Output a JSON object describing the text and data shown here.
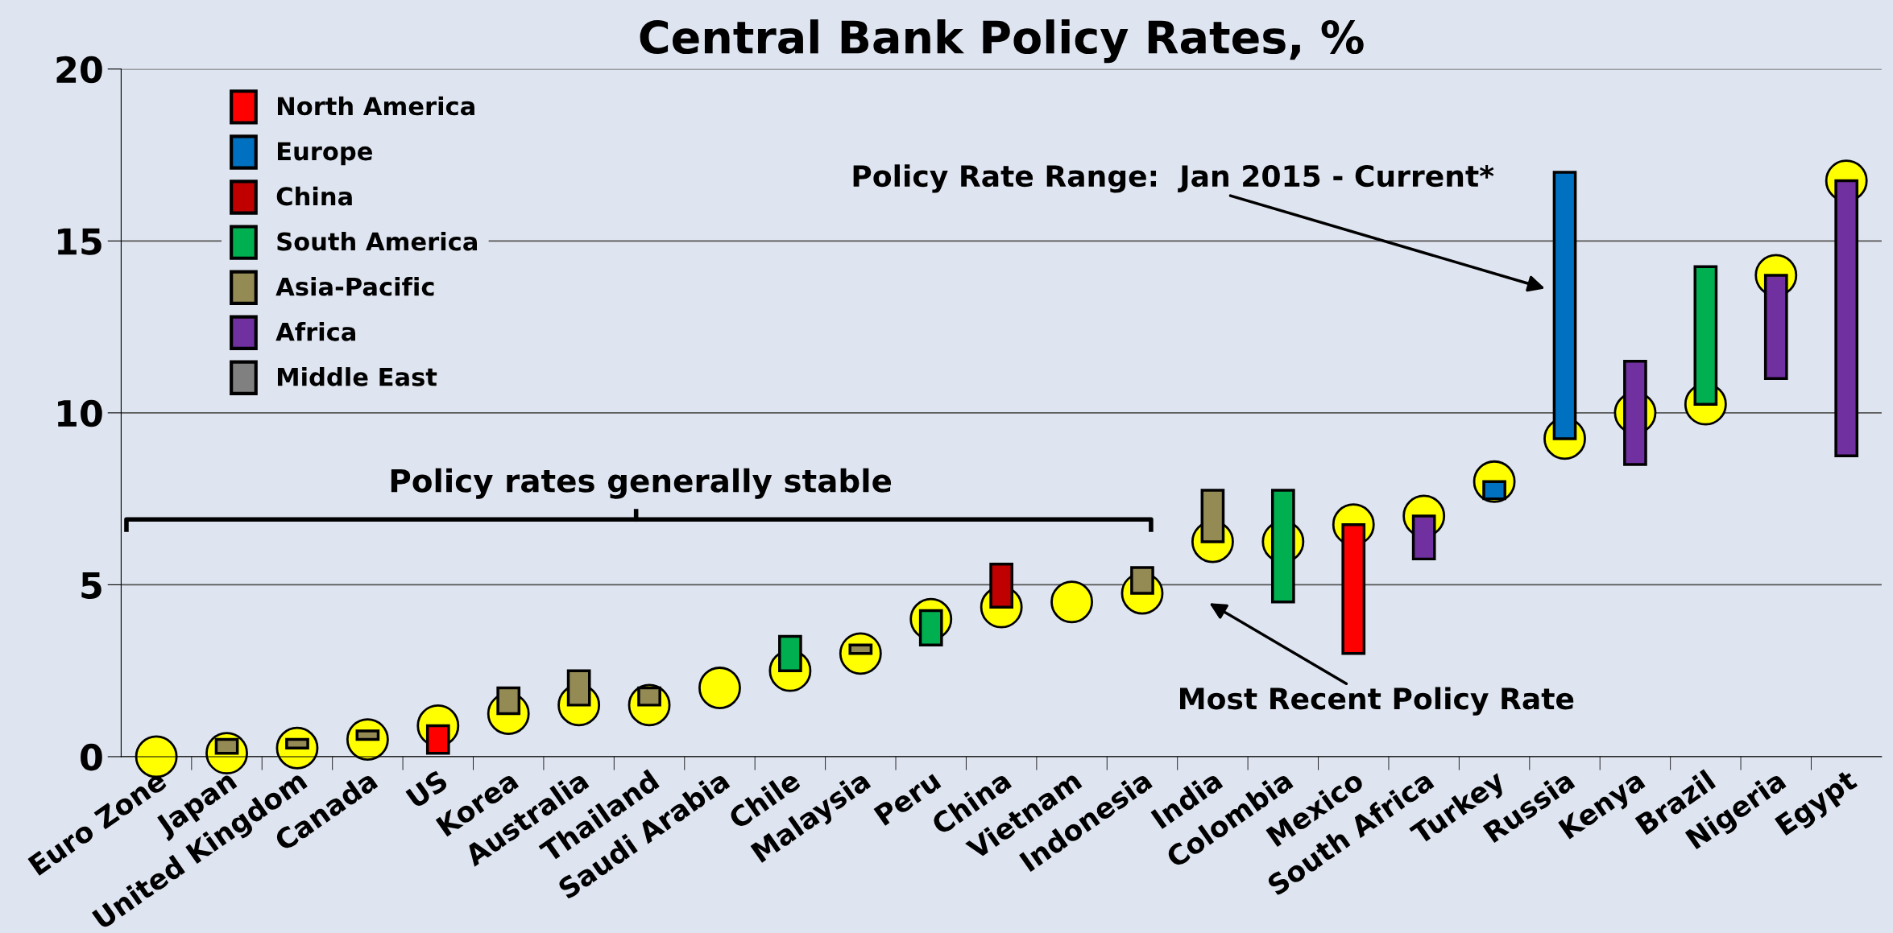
{
  "chart_data": {
    "type": "bar",
    "title": "Central Bank Policy Rates, %",
    "categories": [
      "Euro Zone",
      "Japan",
      "United Kingdom",
      "Canada",
      "US",
      "Korea",
      "Australia",
      "Thailand",
      "Saudi Arabia",
      "Chile",
      "Malaysia",
      "Peru",
      "China",
      "Vietnam",
      "Indonesia",
      "India",
      "Colombia",
      "Mexico",
      "South Africa",
      "Turkey",
      "Russia",
      "Kenya",
      "Brazil",
      "Nigeria",
      "Egypt"
    ],
    "series": [
      {
        "name": "North America",
        "color": "#ff0000",
        "values": [
          null,
          null,
          null,
          null,
          0.8,
          null,
          null,
          null,
          null,
          null,
          null,
          null,
          null,
          null,
          null,
          null,
          null,
          3.75,
          null,
          null,
          null,
          null,
          null,
          null,
          null
        ],
        "base": [
          null,
          null,
          null,
          null,
          0.1,
          null,
          null,
          null,
          null,
          null,
          null,
          null,
          null,
          null,
          null,
          null,
          null,
          3.0,
          null,
          null,
          null,
          null,
          null,
          null,
          null
        ]
      },
      {
        "name": "Europe",
        "color": "#0070c0",
        "values": [
          null,
          null,
          null,
          null,
          null,
          null,
          null,
          null,
          null,
          null,
          null,
          null,
          null,
          null,
          null,
          null,
          null,
          null,
          null,
          0.5,
          7.75,
          null,
          null,
          null,
          null
        ],
        "base": [
          null,
          null,
          null,
          null,
          null,
          null,
          null,
          null,
          null,
          null,
          null,
          null,
          null,
          null,
          null,
          null,
          null,
          null,
          null,
          7.5,
          9.25,
          null,
          null,
          null,
          null
        ]
      },
      {
        "name": "China",
        "color": "#c00000",
        "values": [
          null,
          null,
          null,
          null,
          null,
          null,
          null,
          null,
          null,
          null,
          null,
          null,
          1.25,
          null,
          null,
          null,
          null,
          null,
          null,
          null,
          null,
          null,
          null,
          null,
          null
        ],
        "base": [
          null,
          null,
          null,
          null,
          null,
          null,
          null,
          null,
          null,
          null,
          null,
          null,
          4.35,
          null,
          null,
          null,
          null,
          null,
          null,
          null,
          null,
          null,
          null,
          null,
          null
        ]
      },
      {
        "name": "South America",
        "color": "#00b050",
        "values": [
          null,
          null,
          null,
          null,
          null,
          null,
          null,
          null,
          null,
          1.0,
          null,
          1.0,
          null,
          null,
          null,
          null,
          3.25,
          null,
          null,
          null,
          null,
          null,
          4.0,
          null,
          null
        ],
        "base": [
          null,
          null,
          null,
          null,
          null,
          null,
          null,
          null,
          null,
          2.5,
          null,
          3.25,
          null,
          null,
          null,
          null,
          4.5,
          null,
          null,
          null,
          null,
          null,
          10.25,
          null,
          null
        ]
      },
      {
        "name": "Asia-Pacific",
        "color": "#948a54",
        "values": [
          null,
          0.4,
          0.25,
          0.25,
          null,
          0.75,
          1.0,
          0.5,
          null,
          null,
          0.25,
          null,
          null,
          null,
          0.75,
          1.5,
          null,
          null,
          null,
          null,
          null,
          null,
          null,
          null,
          null
        ],
        "base": [
          null,
          0.1,
          0.25,
          0.5,
          null,
          1.25,
          1.5,
          1.5,
          null,
          null,
          3.0,
          null,
          null,
          null,
          4.75,
          6.25,
          null,
          null,
          null,
          null,
          null,
          null,
          null,
          null,
          null
        ]
      },
      {
        "name": "Africa",
        "color": "#7030a0",
        "values": [
          null,
          null,
          null,
          null,
          null,
          null,
          null,
          null,
          null,
          null,
          null,
          null,
          null,
          null,
          null,
          null,
          null,
          null,
          1.25,
          null,
          null,
          3.0,
          null,
          3.0,
          8.0
        ],
        "base": [
          null,
          null,
          null,
          null,
          null,
          null,
          null,
          null,
          null,
          null,
          null,
          null,
          null,
          null,
          null,
          null,
          null,
          null,
          5.75,
          null,
          null,
          8.5,
          null,
          11.0,
          8.75
        ]
      },
      {
        "name": "Middle East",
        "color": "#808080",
        "values": [
          null,
          null,
          null,
          null,
          null,
          null,
          null,
          null,
          null,
          null,
          null,
          null,
          null,
          null,
          null,
          null,
          null,
          null,
          null,
          null,
          null,
          null,
          null,
          null,
          null
        ],
        "base": [
          null,
          null,
          null,
          null,
          null,
          null,
          null,
          null,
          null,
          null,
          null,
          null,
          null,
          null,
          null,
          null,
          null,
          null,
          null,
          null,
          null,
          null,
          null,
          null,
          null
        ]
      },
      {
        "type": "scatter",
        "color": "#ffff00",
        "values": [
          0,
          0.1,
          0.25,
          0.5,
          0.9,
          1.25,
          1.5,
          1.5,
          2.0,
          2.5,
          3.0,
          4.0,
          4.35,
          4.5,
          4.75,
          6.25,
          6.25,
          6.75,
          7.0,
          8.0,
          9.25,
          10.0,
          10.25,
          14.0,
          16.75
        ]
      }
    ],
    "ylim": [
      0,
      20
    ],
    "yticks": [
      0,
      5,
      10,
      15,
      20
    ],
    "grid": "y",
    "legend": "top left",
    "marker": "circle",
    "annotations": [
      "Policy Rate Range:  Jan 2015 - Current*",
      "Most Recent Policy Rate",
      "Policy rates generally stable"
    ]
  }
}
